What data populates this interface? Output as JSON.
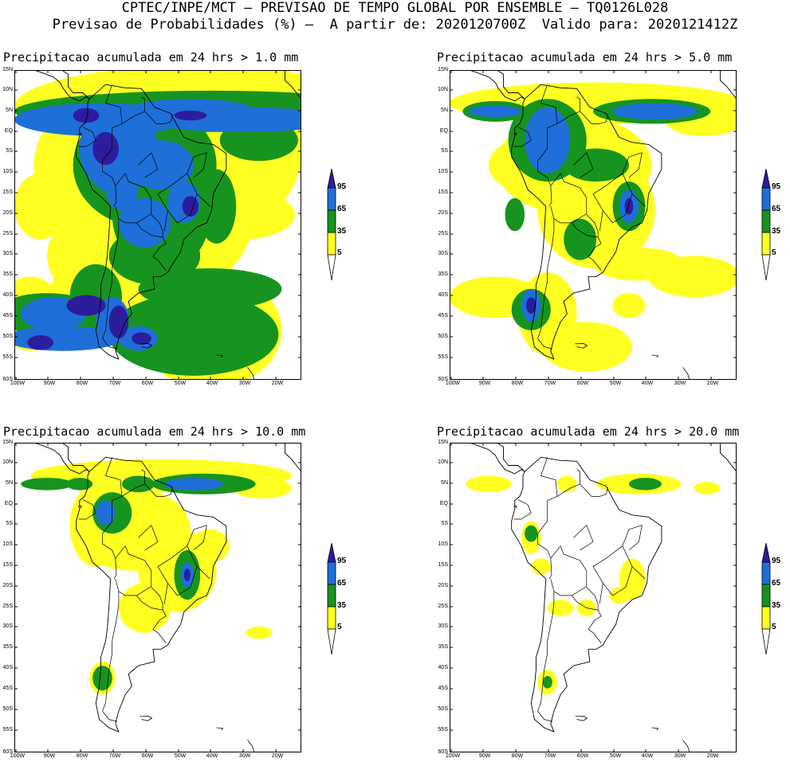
{
  "header": {
    "line1": "CPTEC/INPE/MCT – PREVISAO DE TEMPO GLOBAL POR ENSEMBLE – TQ0126L028",
    "line2": "Previsao de Probabilidades (%) –  A partir de: 2020120700Z  Valido para: 2020121412Z"
  },
  "panels": [
    {
      "title": "Precipitacao acumulada em 24 hrs > 1.0 mm"
    },
    {
      "title": "Precipitacao acumulada em 24 hrs > 5.0 mm"
    },
    {
      "title": "Precipitacao acumulada em 24 hrs > 10.0 mm"
    },
    {
      "title": "Precipitacao acumulada em 24 hrs > 20.0 mm"
    }
  ],
  "lat_labels": [
    "15N",
    "10N",
    "5N",
    "EQ",
    "5S",
    "10S",
    "15S",
    "20S",
    "25S",
    "30S",
    "35S",
    "40S",
    "45S",
    "50S",
    "55S",
    "60S"
  ],
  "lon_labels": [
    "100W",
    "90W",
    "80W",
    "70W",
    "60W",
    "50W",
    "40W",
    "30W",
    "20W"
  ],
  "colorbar": {
    "labels": [
      "95",
      "65",
      "35",
      "5"
    ],
    "colors": [
      "#2c1d9c",
      "#1f6fd8",
      "#16941f",
      "#ffff22",
      "#ffffff"
    ]
  },
  "colors": {
    "c5": "#ffff22",
    "c35": "#16941f",
    "c65": "#1f6fd8",
    "c95": "#2c1d9c"
  }
}
